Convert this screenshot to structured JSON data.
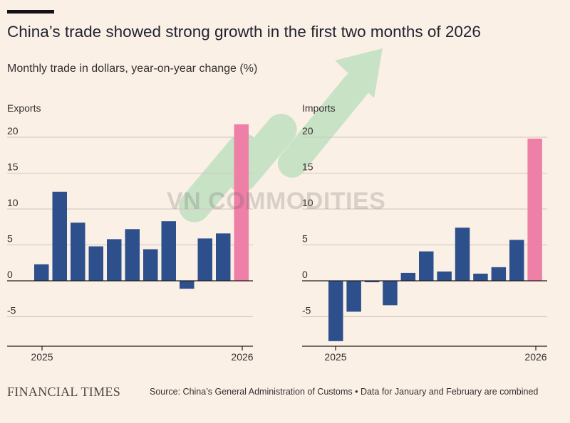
{
  "header": {
    "title": "China’s trade showed strong growth in the first two months of 2026",
    "subtitle": "Monthly trade in dollars, year-on-year change (%)"
  },
  "footer": {
    "logo_text": "FINANCIAL TIMES",
    "source": "Source: China’s General Administration of Customs • Data for January and February are combined"
  },
  "watermark": {
    "text": "VN COMMODITIES"
  },
  "colors": {
    "bar": "#2d4f8c",
    "highlight": "#ee7fa7",
    "background": "#fbf0e6",
    "gridline": "#cfc5bd",
    "zero_line": "#1f1f1f",
    "text": "#33302e"
  },
  "chart_data": [
    {
      "type": "bar",
      "title": "Exports",
      "ylim": [
        -8.5,
        22
      ],
      "yticks": [
        20,
        15,
        10,
        5,
        0,
        -5
      ],
      "x_tick_labels": [
        "2025",
        "2026"
      ],
      "values": [
        2.3,
        12.4,
        8.1,
        4.8,
        5.8,
        7.2,
        4.4,
        8.3,
        -1.1,
        5.9,
        6.6,
        21.8
      ],
      "highlight_index": 11
    },
    {
      "type": "bar",
      "title": "Imports",
      "ylim": [
        -8.5,
        22
      ],
      "yticks": [
        20,
        15,
        10,
        5,
        0,
        -5
      ],
      "x_tick_labels": [
        "2025",
        "2026"
      ],
      "values": [
        -8.4,
        -4.3,
        -0.2,
        -3.4,
        1.1,
        4.1,
        1.3,
        7.4,
        1.0,
        1.9,
        5.7,
        19.8
      ],
      "highlight_index": 11
    }
  ]
}
